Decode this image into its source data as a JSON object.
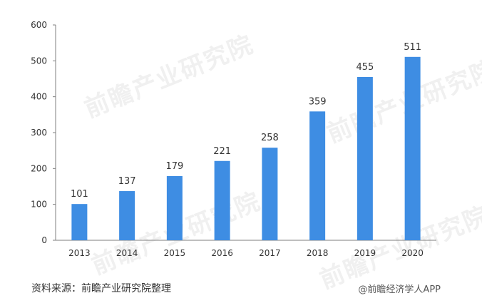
{
  "chart_data": {
    "type": "bar",
    "categories": [
      "2013",
      "2014",
      "2015",
      "2016",
      "2017",
      "2018",
      "2019",
      "2020"
    ],
    "values": [
      101,
      137,
      179,
      221,
      258,
      359,
      455,
      511
    ],
    "ylim": [
      0,
      600
    ],
    "yticks": [
      0,
      100,
      200,
      300,
      400,
      500,
      600
    ],
    "grid": false,
    "legend": "none",
    "bar_color": "#3E8DE3"
  },
  "footer": {
    "source": "资料来源：前瞻产业研究院整理",
    "credit": "@前瞻经济学人APP"
  },
  "watermark": {
    "text": "前瞻产业研究院"
  }
}
